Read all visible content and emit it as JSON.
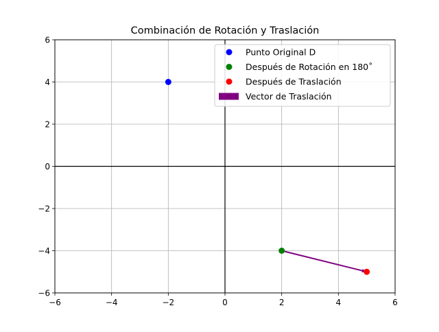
{
  "chart_data": {
    "type": "scatter",
    "title": "Combinación de Rotación y Traslación",
    "xlabel": "",
    "ylabel": "",
    "xlim": [
      -6,
      6
    ],
    "ylim": [
      -6,
      6
    ],
    "xticks": [
      -6,
      -4,
      -2,
      0,
      2,
      4,
      6
    ],
    "yticks": [
      -6,
      -4,
      -2,
      0,
      2,
      4,
      6
    ],
    "xtick_labels": [
      "−6",
      "−4",
      "−2",
      "0",
      "2",
      "4",
      "6"
    ],
    "ytick_labels": [
      "−6",
      "−4",
      "−2",
      "0",
      "2",
      "4",
      "6"
    ],
    "grid": true,
    "axes_lines": {
      "x0": true,
      "y0": true
    },
    "legend_position": "upper right",
    "series": [
      {
        "name": "Punto Original D",
        "type": "point",
        "color": "#0000ff",
        "x": [
          -2
        ],
        "y": [
          4
        ]
      },
      {
        "name": "Después de Rotación en 180˚",
        "type": "point",
        "color": "#008000",
        "x": [
          2
        ],
        "y": [
          -4
        ]
      },
      {
        "name": "Después de Traslación",
        "type": "point",
        "color": "#ff0000",
        "x": [
          5
        ],
        "y": [
          -5
        ]
      },
      {
        "name": "Vector de Traslación",
        "type": "arrow",
        "color": "#800080",
        "from": [
          2,
          -4
        ],
        "to": [
          5,
          -5
        ],
        "delta": [
          3,
          -1
        ]
      }
    ]
  }
}
